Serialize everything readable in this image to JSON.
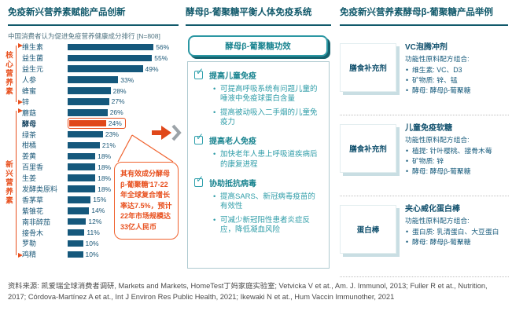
{
  "palette": {
    "title_navy": "#11596B",
    "bar_navy": "#15587C",
    "accent_orange": "#E8501E",
    "teal": "#2F9DA8",
    "shadow_teal": "#15626E"
  },
  "left": {
    "title": "免疫新兴营养素赋能产品创新",
    "subtitle": "中国消费者认为促进免疫营养健康成分排行 [N=808]",
    "callout": "其有效成分酵母β-葡聚糖'17-22年全球复合增长率达7.5%，预计22年市场规模达33亿人民币"
  },
  "chart_data": {
    "type": "bar",
    "orientation": "horizontal",
    "title": "免疫新兴营养素赋能产品创新",
    "subtitle": "中国消费者认为促进免疫营养健康成分排行 [N=808]",
    "unit": "%",
    "categories": [
      "维生素",
      "益生菌",
      "益生元",
      "人参",
      "蜂蜜",
      "锌",
      "蘑菇",
      "酵母",
      "绿茶",
      "柑橘",
      "姜黄",
      "百里香",
      "生姜",
      "发酵类原料",
      "香茅草",
      "紫锥花",
      "南非醉茄",
      "接骨木",
      "罗勒",
      "鸡精"
    ],
    "values": [
      56,
      55,
      49,
      33,
      28,
      27,
      26,
      24,
      23,
      21,
      18,
      18,
      18,
      18,
      15,
      14,
      12,
      11,
      10,
      10
    ],
    "highlight_category": "酵母",
    "groups": [
      {
        "label": "核心营养素",
        "start_index": 0,
        "end_index": 5
      },
      {
        "label": "新兴营养素",
        "start_index": 6,
        "end_index": 19
      }
    ],
    "xlim": [
      0,
      60
    ],
    "grid": false,
    "bar_color": "#15587C",
    "highlight_color": "#E0481A"
  },
  "middle": {
    "title": "酵母β-葡聚糖平衡人体免疫系统",
    "badge": "酵母β-葡聚糖功效",
    "sections": [
      {
        "heading": "提高儿童免疫",
        "bullets": [
          "可提高呼吸系统有问题儿童的唾液中免疫球蛋白含量",
          "提高被动吸入二手烟的儿童免疫力"
        ]
      },
      {
        "heading": "提高老人免疫",
        "bullets": [
          "加快老年人患上呼吸道疾病后的康复进程"
        ]
      },
      {
        "heading": "协助抵抗病毒",
        "bullets": [
          "提高SARS、新冠病毒疫苗的有效性",
          "可减少新冠阳性患者炎症反应，降低凝血风险"
        ]
      }
    ]
  },
  "right": {
    "title": "免疫新兴营养素酵母β-葡聚糖产品举例",
    "products": [
      {
        "category": "膳食补充剂",
        "name": "VC泡腾冲剂",
        "intro": "功能性原料配方组合:",
        "ingredients": [
          "维生素: VC、D3",
          "矿物质: 锌、锰",
          "酵母: 酵母β-葡聚糖"
        ]
      },
      {
        "category": "膳食补充剂",
        "name": "儿童免疫软糖",
        "intro": "功能性原料配方组合:",
        "ingredients": [
          "植提: 针叶樱桃、接骨木莓",
          "矿物质: 锌",
          "酵母: 酵母β-葡聚糖"
        ]
      },
      {
        "category": "蛋白棒",
        "name": "夹心威化蛋白棒",
        "intro": "功能性原料配方组合:",
        "ingredients": [
          "蛋白质: 乳清蛋白、大豆蛋白",
          "酵母: 酵母β-葡聚糖"
        ]
      }
    ]
  },
  "footer": {
    "source": "资料来源: 凯爱瑞全球消费者调研, Markets and Markets, HomeTest丁妈家庭实验室; Vetvicka V et at., Am. J. Immunol, 2013; Fuller R et at., Nutrition, 2017; Córdova-Martínez A et at., Int J Environ Res Public Health, 2021; Ikewaki N et at., Hum Vaccin Immunother, 2021"
  }
}
